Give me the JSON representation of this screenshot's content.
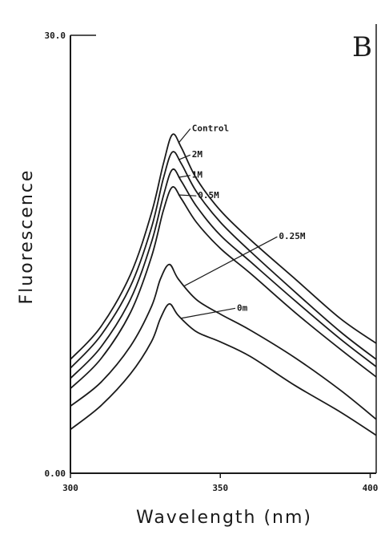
{
  "chart_data": {
    "type": "line",
    "title": "",
    "panel_label": "B",
    "xlabel": "Wavelength (nm)",
    "ylabel": "Fluorescence",
    "xlim": [
      300,
      402
    ],
    "ylim": [
      0,
      30
    ],
    "x_ticks": [
      {
        "value": 300,
        "label": "300"
      },
      {
        "value": 350,
        "label": "350"
      },
      {
        "value": 400,
        "label": "400"
      }
    ],
    "y_ticks": [
      {
        "value": 0,
        "label": "0.00"
      },
      {
        "value": 30,
        "label": "30.0"
      }
    ],
    "grid": false,
    "legend": "none",
    "series": [
      {
        "name": "Control",
        "x": [
          300,
          310,
          320,
          327,
          331,
          334,
          337,
          342,
          350,
          360,
          375,
          390,
          402
        ],
        "y": [
          7.8,
          10.0,
          13.6,
          17.8,
          21.2,
          23.2,
          22.3,
          20.2,
          18.0,
          16.0,
          13.3,
          10.6,
          8.9
        ]
      },
      {
        "name": "2M",
        "x": [
          300,
          310,
          320,
          327,
          331,
          334,
          337,
          342,
          350,
          360,
          375,
          390,
          402
        ],
        "y": [
          7.2,
          9.4,
          12.8,
          16.8,
          20.2,
          22.0,
          21.2,
          19.3,
          17.2,
          15.2,
          12.4,
          9.7,
          7.8
        ]
      },
      {
        "name": "1M",
        "x": [
          300,
          310,
          320,
          327,
          331,
          334,
          337,
          342,
          350,
          360,
          375,
          390,
          402
        ],
        "y": [
          6.5,
          8.6,
          11.9,
          15.8,
          19.0,
          20.8,
          20.0,
          18.3,
          16.3,
          14.5,
          11.8,
          9.2,
          7.3
        ]
      },
      {
        "name": "0.5M",
        "x": [
          300,
          310,
          320,
          327,
          331,
          334,
          337,
          342,
          350,
          360,
          375,
          390,
          402
        ],
        "y": [
          5.8,
          7.8,
          11.0,
          14.8,
          18.0,
          19.6,
          18.8,
          17.2,
          15.4,
          13.7,
          11.0,
          8.5,
          6.6
        ]
      },
      {
        "name": "0.25M",
        "x": [
          300,
          310,
          320,
          327,
          330,
          333,
          336,
          342,
          350,
          360,
          375,
          390,
          402
        ],
        "y": [
          4.6,
          6.2,
          8.7,
          11.4,
          13.3,
          14.3,
          13.3,
          11.9,
          10.9,
          9.8,
          7.9,
          5.7,
          3.7
        ]
      },
      {
        "name": "0m",
        "x": [
          300,
          310,
          320,
          327,
          330,
          333,
          336,
          342,
          350,
          360,
          375,
          390,
          402
        ],
        "y": [
          3.0,
          4.6,
          6.8,
          9.0,
          10.6,
          11.6,
          10.8,
          9.7,
          9.0,
          8.0,
          6.0,
          4.2,
          2.6
        ]
      }
    ],
    "annotations": [
      {
        "text": "Control",
        "series": "Control",
        "at_x": 336,
        "label_x": 340,
        "label_y": 23.6
      },
      {
        "text": "2M",
        "series": "2M",
        "at_x": 336,
        "label_x": 340,
        "label_y": 21.8
      },
      {
        "text": "1M",
        "series": "1M",
        "at_x": 336,
        "label_x": 340,
        "label_y": 20.4
      },
      {
        "text": "0.5M",
        "series": "0.5M",
        "at_x": 336,
        "label_x": 342,
        "label_y": 19.0
      },
      {
        "text": "0.25M",
        "series": "0.25M",
        "at_x": 338,
        "label_x": 369,
        "label_y": 16.2
      },
      {
        "text": "0m",
        "series": "0m",
        "at_x": 337,
        "label_x": 355,
        "label_y": 11.3
      }
    ]
  }
}
